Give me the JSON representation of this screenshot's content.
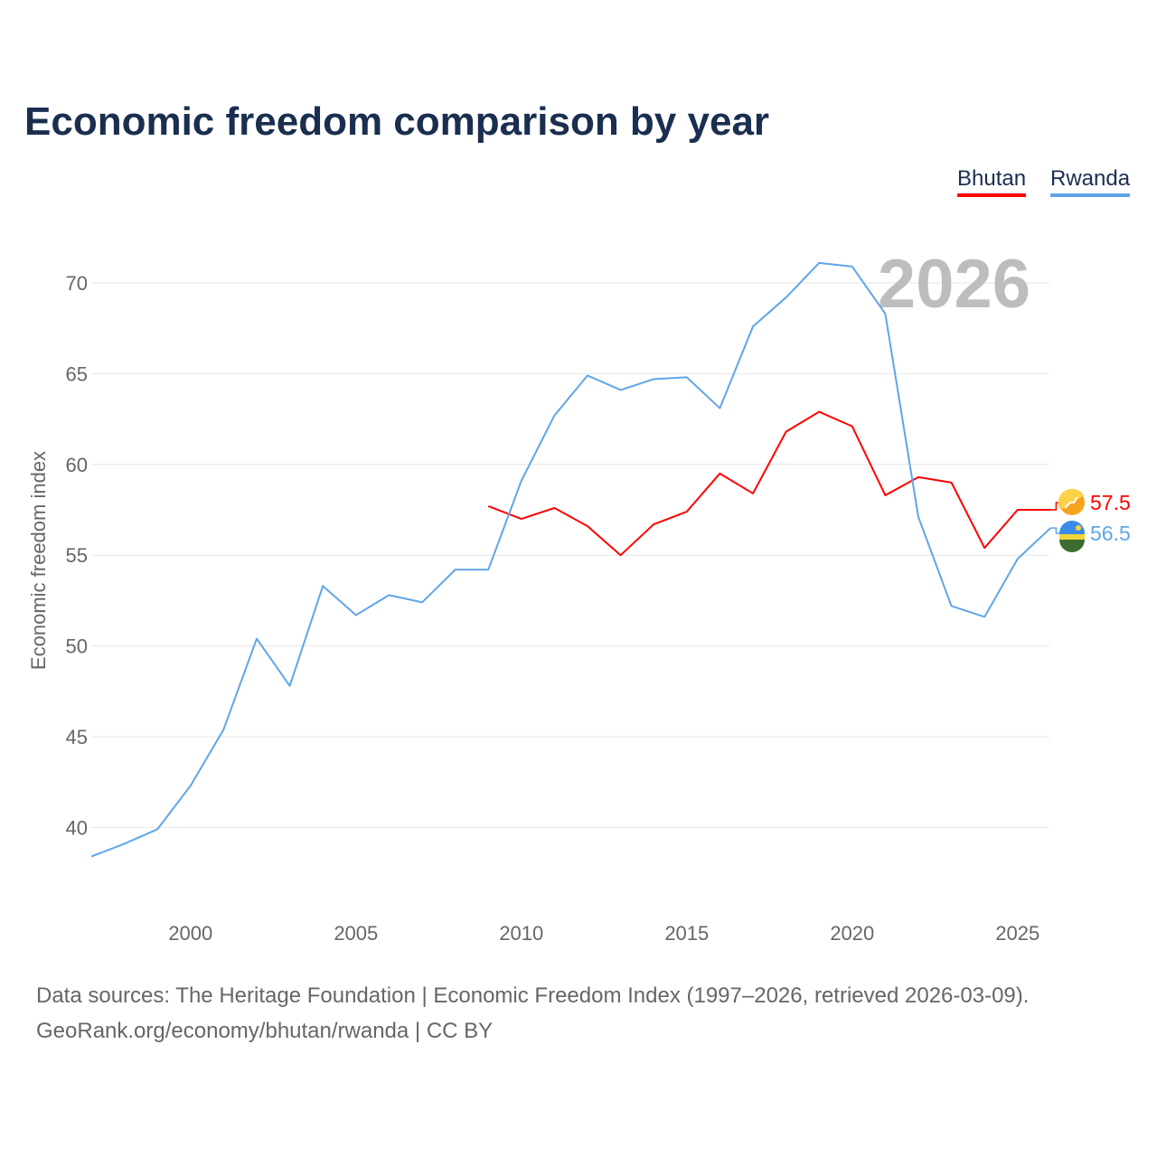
{
  "chart_data": {
    "type": "line",
    "title": "Economic freedom comparison by year",
    "xlabel": "",
    "ylabel": "Economic freedom index",
    "xlim": [
      1997,
      2026
    ],
    "ylim": [
      35.5,
      73
    ],
    "x_ticks": [
      2000,
      2005,
      2010,
      2015,
      2020,
      2025
    ],
    "y_ticks": [
      40,
      45,
      50,
      55,
      60,
      65,
      70
    ],
    "grid": true,
    "legend_placement": "top-right",
    "watermark_year": "2026",
    "series": [
      {
        "name": "Bhutan",
        "color": "#ff0000",
        "end_label": "57.5",
        "x": [
          2009,
          2010,
          2011,
          2012,
          2013,
          2014,
          2015,
          2016,
          2017,
          2018,
          2019,
          2020,
          2021,
          2022,
          2023,
          2024,
          2025,
          2026
        ],
        "values": [
          57.7,
          57.0,
          57.6,
          56.6,
          55.0,
          56.7,
          57.4,
          59.5,
          58.4,
          61.8,
          62.9,
          62.1,
          58.3,
          59.3,
          59.0,
          55.4,
          57.5,
          57.5
        ]
      },
      {
        "name": "Rwanda",
        "color": "#60a5e8",
        "end_label": "56.5",
        "x": [
          1997,
          1998,
          1999,
          2000,
          2001,
          2002,
          2003,
          2004,
          2005,
          2006,
          2007,
          2008,
          2009,
          2010,
          2011,
          2012,
          2013,
          2014,
          2015,
          2016,
          2017,
          2018,
          2019,
          2020,
          2021,
          2022,
          2023,
          2024,
          2025,
          2026
        ],
        "values": [
          38.4,
          39.1,
          39.9,
          42.3,
          45.4,
          50.4,
          47.8,
          53.3,
          51.7,
          52.8,
          52.4,
          54.2,
          54.2,
          59.1,
          62.7,
          64.9,
          64.1,
          64.7,
          64.8,
          63.1,
          67.6,
          69.2,
          71.1,
          70.9,
          68.3,
          57.1,
          52.2,
          51.6,
          54.8,
          56.5
        ]
      }
    ]
  },
  "footer": {
    "line1": "Data sources: The Heritage Foundation | Economic Freedom Index (1997–2026, retrieved 2026-03-09).",
    "line2": "GeoRank.org/economy/bhutan/rwanda | CC BY"
  }
}
